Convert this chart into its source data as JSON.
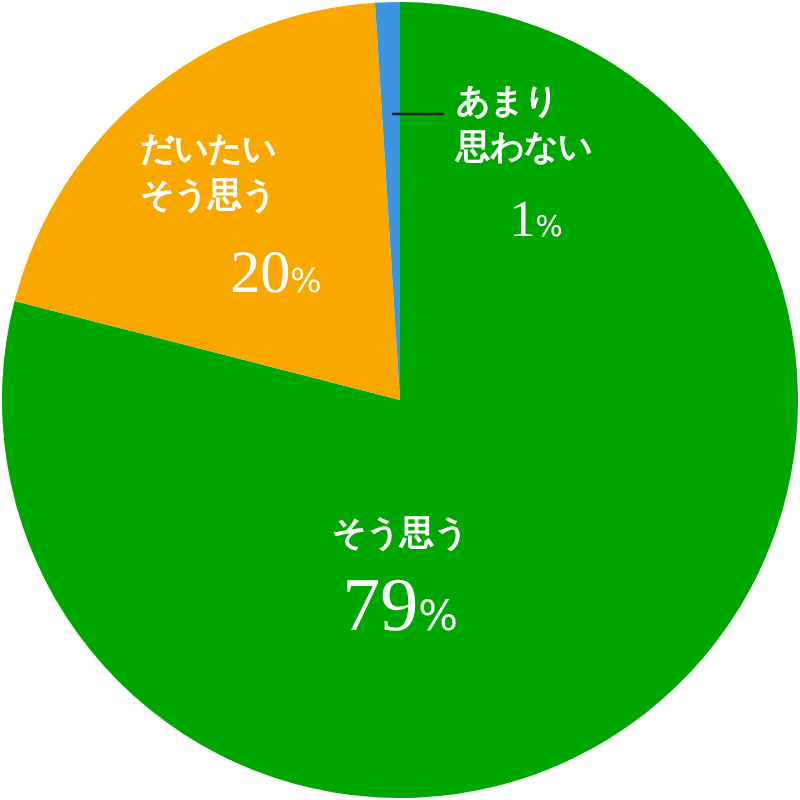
{
  "chart_data": {
    "type": "pie",
    "categories": [
      "そう思う",
      "だいたいそう思う",
      "あまり思わない"
    ],
    "values": [
      79,
      20,
      1
    ],
    "colors": [
      "#00a600",
      "#f9a800",
      "#3d95e0"
    ],
    "value_labels": [
      "79%",
      "20%",
      "1%"
    ]
  }
}
